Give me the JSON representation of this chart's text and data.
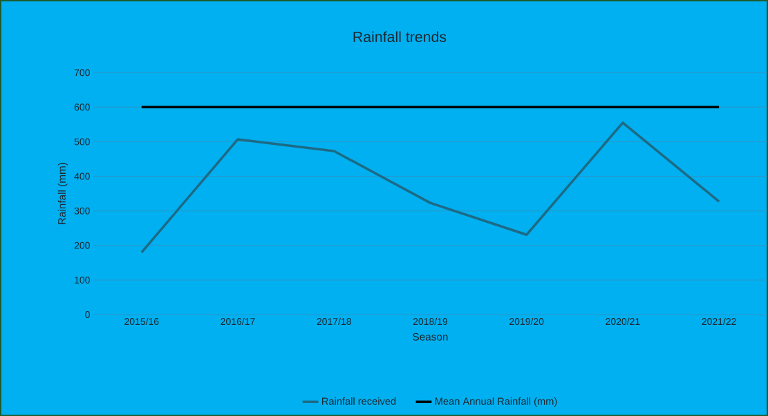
{
  "chart_data": {
    "type": "line",
    "title": "Rainfall trends",
    "xlabel": "Season",
    "ylabel": "Rainfall (mm)",
    "categories": [
      "2015/16",
      "2016/17",
      "2017/18",
      "2018/19",
      "2019/20",
      "2020/21",
      "2021/22"
    ],
    "series": [
      {
        "name": "Rainfall received",
        "color": "#1d6a85",
        "values": [
          180,
          507,
          473,
          323,
          231,
          555,
          327
        ]
      },
      {
        "name": "Mean Annual Rainfall (mm)",
        "color": "#000000",
        "values": [
          600,
          600,
          600,
          600,
          600,
          600,
          600
        ]
      }
    ],
    "ylim": [
      0,
      700
    ],
    "yticks": [
      0,
      100,
      200,
      300,
      400,
      500,
      600,
      700
    ],
    "grid": "y",
    "legend": "bottom",
    "marker": "none",
    "line_style": "solid"
  }
}
